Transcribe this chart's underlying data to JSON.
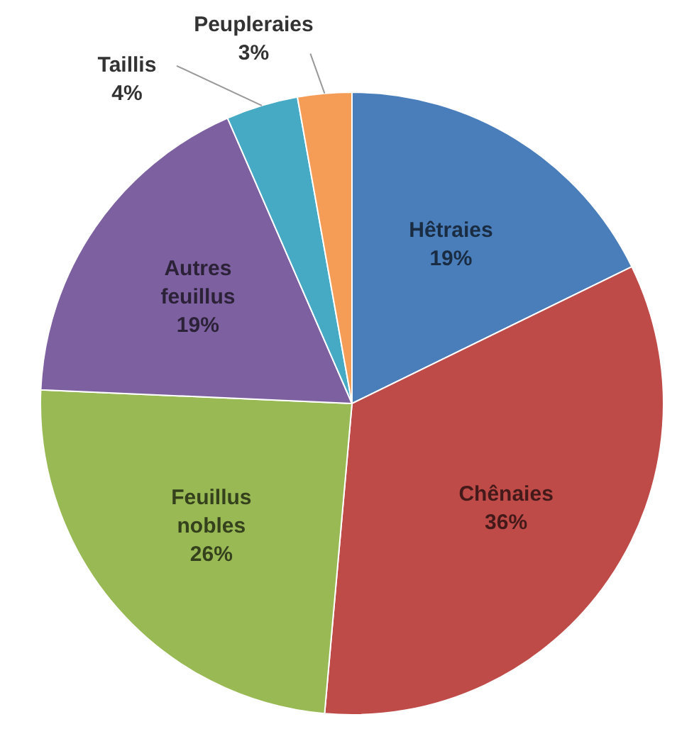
{
  "chart_data": {
    "type": "pie",
    "categories": [
      "Hêtraies",
      "Chênaies",
      "Feuillus nobles",
      "Autres feuillus",
      "Taillis",
      "Peupleraies"
    ],
    "values": [
      19,
      36,
      26,
      19,
      4,
      3
    ],
    "value_labels": [
      "19%",
      "36%",
      "26%",
      "19%",
      "4%",
      "3%"
    ],
    "colors": [
      "#4a7ebb",
      "#be4b48",
      "#98b954",
      "#7d60a0",
      "#46aac5",
      "#f59d56"
    ],
    "legend": false
  }
}
